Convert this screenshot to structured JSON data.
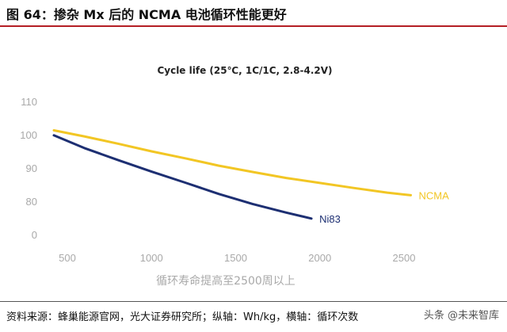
{
  "figure_title": "图 64：掺杂 Mx 后的 NCMA 电池循环性能更好",
  "source": "资料来源：蜂巢能源官网，光大证券研究所；纵轴：Wh/kg，横轴：循环次数",
  "watermark": "头条 @未来智库",
  "chart_data": {
    "type": "line",
    "title": "Cycle life (25℃, 1C/1C, 2.8-4.2V)",
    "xlabel": "循环寿命提高至2500周以上",
    "ylabel": "",
    "xlim": [
      400,
      2650
    ],
    "ylim": [
      0,
      110
    ],
    "xticks": [
      500,
      1000,
      1500,
      2000,
      2500
    ],
    "yticks": [
      0,
      80,
      90,
      100,
      110
    ],
    "grid": false,
    "series": [
      {
        "name": "NCMA",
        "color": "#f2c624",
        "x": [
          420,
          600,
          800,
          1000,
          1200,
          1400,
          1600,
          1800,
          2000,
          2200,
          2400,
          2540
        ],
        "y": [
          101.3,
          99.5,
          97.3,
          95.0,
          92.9,
          90.7,
          88.8,
          87.0,
          85.5,
          84.0,
          82.6,
          81.8
        ]
      },
      {
        "name": "Ni83",
        "color": "#1d2f72",
        "x": [
          420,
          600,
          800,
          1000,
          1200,
          1400,
          1600,
          1800,
          1950
        ],
        "y": [
          99.8,
          96.0,
          92.4,
          88.9,
          85.6,
          82.2,
          79.2,
          76.6,
          74.8
        ]
      }
    ]
  }
}
